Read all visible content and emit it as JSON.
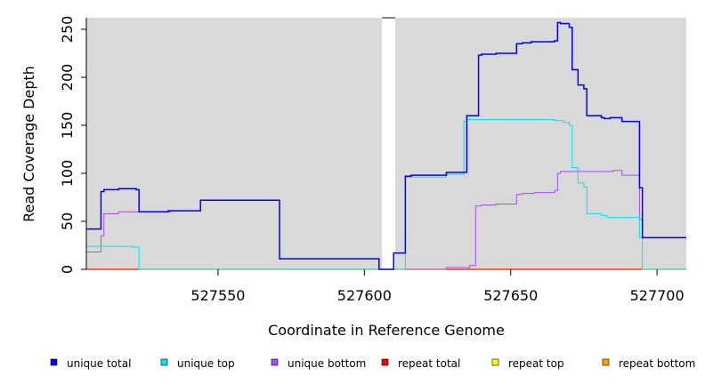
{
  "chart_data": {
    "type": "line",
    "xlabel": "Coordinate in Reference Genome",
    "ylabel": "Read Coverage Depth",
    "xlim": [
      527505,
      527710
    ],
    "ylim": [
      0,
      262
    ],
    "x_ticks": [
      527550,
      527600,
      527650,
      527700
    ],
    "y_ticks": [
      0,
      50,
      100,
      150,
      200,
      250
    ],
    "background_color": "#d9d9d9",
    "gap_regions": [
      [
        527606,
        527610.5
      ]
    ],
    "legend_position": "bottom",
    "series": [
      {
        "name": "unique total",
        "color": "#0000ff",
        "width": 1.5,
        "steps": [
          [
            527505,
            42
          ],
          [
            527510,
            81
          ],
          [
            527511,
            83
          ],
          [
            527516,
            84
          ],
          [
            527522,
            83
          ],
          [
            527523,
            60
          ],
          [
            527533,
            61
          ],
          [
            527544,
            72
          ],
          [
            527571,
            11
          ],
          [
            527605,
            0
          ],
          [
            527610,
            17
          ],
          [
            527614,
            97
          ],
          [
            527616,
            98
          ],
          [
            527628,
            101
          ],
          [
            527635,
            160
          ],
          [
            527639,
            223
          ],
          [
            527640,
            224
          ],
          [
            527645,
            225
          ],
          [
            527652,
            235
          ],
          [
            527654,
            236
          ],
          [
            527657,
            237
          ],
          [
            527665,
            238
          ],
          [
            527666,
            257
          ],
          [
            527667,
            256
          ],
          [
            527670,
            252
          ],
          [
            527671,
            208
          ],
          [
            527673,
            192
          ],
          [
            527675,
            188
          ],
          [
            527676,
            160
          ],
          [
            527681,
            158
          ],
          [
            527682,
            157
          ],
          [
            527684,
            158
          ],
          [
            527688,
            154
          ],
          [
            527694,
            85
          ],
          [
            527695,
            33
          ]
        ],
        "end": 527710
      },
      {
        "name": "unique top",
        "color": "#00e5ee",
        "width": 1,
        "steps": [
          [
            527505,
            24
          ],
          [
            527521,
            23
          ],
          [
            527523,
            0
          ],
          [
            527612,
            0
          ],
          [
            527614,
            96
          ],
          [
            527628,
            99
          ],
          [
            527634,
            154
          ],
          [
            527635,
            156
          ],
          [
            527665,
            155
          ],
          [
            527668,
            153
          ],
          [
            527670,
            150
          ],
          [
            527671,
            106
          ],
          [
            527673,
            90
          ],
          [
            527675,
            86
          ],
          [
            527676,
            58
          ],
          [
            527681,
            56
          ],
          [
            527683,
            54
          ],
          [
            527694,
            33
          ],
          [
            527695,
            0
          ]
        ],
        "end": 527710
      },
      {
        "name": "unique bottom",
        "color": "#a64dff",
        "width": 1,
        "steps": [
          [
            527505,
            18
          ],
          [
            527510,
            35
          ],
          [
            527511,
            58
          ],
          [
            527516,
            60
          ],
          [
            527534,
            61
          ],
          [
            527544,
            72
          ],
          [
            527571,
            11
          ],
          [
            527605,
            0
          ],
          [
            527628,
            2
          ],
          [
            527636,
            4
          ],
          [
            527638,
            66
          ],
          [
            527640,
            67
          ],
          [
            527645,
            68
          ],
          [
            527652,
            78
          ],
          [
            527654,
            79
          ],
          [
            527658,
            80
          ],
          [
            527665,
            82
          ],
          [
            527666,
            100
          ],
          [
            527667,
            102
          ],
          [
            527685,
            103
          ],
          [
            527688,
            98
          ],
          [
            527694,
            52
          ],
          [
            527695,
            33
          ]
        ],
        "end": 527710
      },
      {
        "name": "repeat total",
        "color": "#ff0000",
        "width": 1,
        "steps": [
          [
            527505,
            0
          ]
        ],
        "end": 527710
      },
      {
        "name": "repeat top",
        "color": "#ffff00",
        "width": 1,
        "steps": [
          [
            527505,
            0
          ]
        ],
        "end": 527710
      },
      {
        "name": "repeat bottom",
        "color": "#ffa500",
        "width": 1.5,
        "steps": [
          [
            527505,
            0
          ]
        ],
        "end": 527710
      }
    ]
  }
}
